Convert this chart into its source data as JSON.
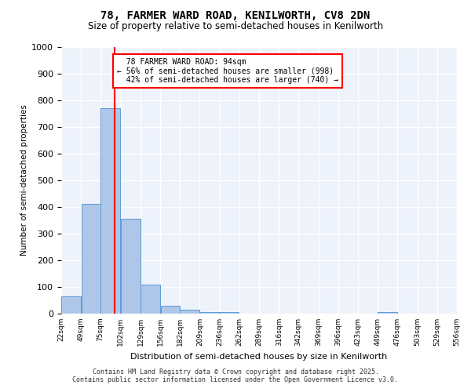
{
  "title": "78, FARMER WARD ROAD, KENILWORTH, CV8 2DN",
  "subtitle": "Size of property relative to semi-detached houses in Kenilworth",
  "xlabel": "Distribution of semi-detached houses by size in Kenilworth",
  "ylabel": "Number of semi-detached properties",
  "bar_color": "#aec6e8",
  "bar_edge_color": "#5b9bd5",
  "background_color": "#eef2fa",
  "grid_color": "#ffffff",
  "property_line_x": 94,
  "property_label": "78 FARMER WARD ROAD: 94sqm",
  "pct_smaller": 56,
  "pct_larger": 42,
  "count_smaller": 998,
  "count_larger": 740,
  "bin_edges": [
    22,
    49,
    75,
    102,
    129,
    156,
    182,
    209,
    236,
    262,
    289,
    316,
    342,
    369,
    396,
    423,
    449,
    476,
    503,
    529,
    556
  ],
  "bar_heights": [
    65,
    411,
    770,
    355,
    110,
    28,
    15,
    7,
    5,
    0,
    0,
    0,
    0,
    0,
    0,
    0,
    5,
    0,
    0,
    0
  ],
  "ylim": [
    0,
    1000
  ],
  "yticks": [
    0,
    100,
    200,
    300,
    400,
    500,
    600,
    700,
    800,
    900,
    1000
  ],
  "footer_line1": "Contains HM Land Registry data © Crown copyright and database right 2025.",
  "footer_line2": "Contains public sector information licensed under the Open Government Licence v3.0."
}
